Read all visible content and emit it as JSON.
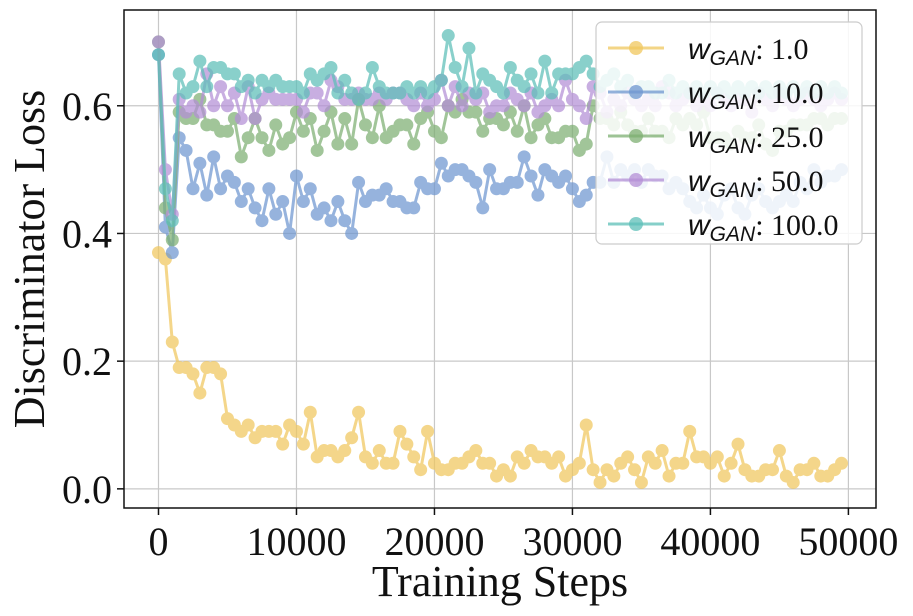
{
  "chart_data": {
    "type": "line",
    "xlabel": "Training Steps",
    "ylabel": "Discriminator Loss",
    "xlim": [
      -2500,
      52000
    ],
    "ylim": [
      -0.03,
      0.75
    ],
    "xticks": [
      0,
      10000,
      20000,
      30000,
      40000,
      50000
    ],
    "xtick_labels": [
      "0",
      "10000",
      "20000",
      "30000",
      "40000",
      "50000"
    ],
    "yticks": [
      0.0,
      0.2,
      0.4,
      0.6
    ],
    "ytick_labels": [
      "0.0",
      "0.2",
      "0.4",
      "0.6"
    ],
    "grid": true,
    "legend_position": "top-right",
    "x": [
      0,
      500,
      1000,
      1500,
      2000,
      2500,
      3000,
      3500,
      4000,
      4500,
      5000,
      5500,
      6000,
      6500,
      7000,
      7500,
      8000,
      8500,
      9000,
      9500,
      10000,
      10500,
      11000,
      11500,
      12000,
      12500,
      13000,
      13500,
      14000,
      14500,
      15000,
      15500,
      16000,
      16500,
      17000,
      17500,
      18000,
      18500,
      19000,
      19500,
      20000,
      20500,
      21000,
      21500,
      22000,
      22500,
      23000,
      23500,
      24000,
      24500,
      25000,
      25500,
      26000,
      26500,
      27000,
      27500,
      28000,
      28500,
      29000,
      29500,
      30000,
      30500,
      31000,
      31500,
      32000,
      32500,
      33000,
      33500,
      34000,
      34500,
      35000,
      35500,
      36000,
      36500,
      37000,
      37500,
      38000,
      38500,
      39000,
      39500,
      40000,
      40500,
      41000,
      41500,
      42000,
      42500,
      43000,
      43500,
      44000,
      44500,
      45000,
      45500,
      46000,
      46500,
      47000,
      47500,
      48000,
      48500,
      49000,
      49500
    ],
    "series": [
      {
        "name": "1.0",
        "color": "#f0c75e",
        "values": [
          0.37,
          0.36,
          0.23,
          0.19,
          0.19,
          0.18,
          0.15,
          0.19,
          0.19,
          0.18,
          0.11,
          0.1,
          0.09,
          0.1,
          0.08,
          0.09,
          0.09,
          0.09,
          0.07,
          0.1,
          0.09,
          0.07,
          0.12,
          0.05,
          0.06,
          0.06,
          0.05,
          0.06,
          0.08,
          0.12,
          0.05,
          0.04,
          0.06,
          0.04,
          0.04,
          0.09,
          0.07,
          0.05,
          0.03,
          0.09,
          0.04,
          0.03,
          0.03,
          0.04,
          0.04,
          0.05,
          0.06,
          0.04,
          0.04,
          0.02,
          0.03,
          0.02,
          0.05,
          0.04,
          0.06,
          0.05,
          0.05,
          0.04,
          0.05,
          0.02,
          0.03,
          0.04,
          0.1,
          0.03,
          0.01,
          0.03,
          0.02,
          0.04,
          0.05,
          0.03,
          0.01,
          0.05,
          0.04,
          0.06,
          0.02,
          0.04,
          0.04,
          0.09,
          0.05,
          0.05,
          0.04,
          0.05,
          0.02,
          0.04,
          0.07,
          0.03,
          0.02,
          0.02,
          0.03,
          0.03,
          0.06,
          0.02,
          0.01,
          0.03,
          0.03,
          0.04,
          0.02,
          0.02,
          0.03,
          0.04
        ]
      },
      {
        "name": "10.0",
        "color": "#6f97d0",
        "values": [
          0.68,
          0.41,
          0.37,
          0.55,
          0.53,
          0.47,
          0.51,
          0.46,
          0.52,
          0.47,
          0.49,
          0.48,
          0.45,
          0.47,
          0.44,
          0.42,
          0.47,
          0.43,
          0.45,
          0.4,
          0.49,
          0.45,
          0.47,
          0.43,
          0.44,
          0.42,
          0.45,
          0.42,
          0.4,
          0.48,
          0.45,
          0.46,
          0.46,
          0.47,
          0.45,
          0.45,
          0.44,
          0.44,
          0.48,
          0.47,
          0.47,
          0.51,
          0.49,
          0.5,
          0.5,
          0.49,
          0.48,
          0.44,
          0.5,
          0.47,
          0.47,
          0.48,
          0.48,
          0.52,
          0.49,
          0.46,
          0.5,
          0.49,
          0.48,
          0.49,
          0.47,
          0.45,
          0.46,
          0.48,
          0.48,
          0.52,
          0.48,
          0.5,
          0.49,
          0.5,
          0.48,
          0.5,
          0.49,
          0.49,
          0.47,
          0.48,
          0.47,
          0.45,
          0.44,
          0.46,
          0.44,
          0.43,
          0.46,
          0.47,
          0.44,
          0.43,
          0.46,
          0.47,
          0.45,
          0.44,
          0.45,
          0.46,
          0.45,
          0.48,
          0.47,
          0.5,
          0.48,
          0.49,
          0.49,
          0.5
        ]
      },
      {
        "name": "25.0",
        "color": "#7daf72",
        "values": [
          0.7,
          0.44,
          0.39,
          0.59,
          0.58,
          0.58,
          0.61,
          0.57,
          0.57,
          0.56,
          0.56,
          0.58,
          0.52,
          0.55,
          0.58,
          0.55,
          0.53,
          0.57,
          0.54,
          0.55,
          0.59,
          0.56,
          0.58,
          0.53,
          0.56,
          0.59,
          0.54,
          0.58,
          0.54,
          0.61,
          0.57,
          0.55,
          0.6,
          0.55,
          0.56,
          0.57,
          0.57,
          0.54,
          0.58,
          0.59,
          0.56,
          0.55,
          0.6,
          0.59,
          0.61,
          0.59,
          0.59,
          0.56,
          0.58,
          0.58,
          0.57,
          0.59,
          0.56,
          0.6,
          0.55,
          0.57,
          0.58,
          0.55,
          0.55,
          0.56,
          0.56,
          0.53,
          0.54,
          0.6,
          0.58,
          0.58,
          0.57,
          0.59,
          0.57,
          0.56,
          0.56,
          0.58,
          0.56,
          0.56,
          0.55,
          0.58,
          0.57,
          0.58,
          0.57,
          0.59,
          0.55,
          0.55,
          0.55,
          0.54,
          0.56,
          0.55,
          0.55,
          0.57,
          0.54,
          0.53,
          0.56,
          0.56,
          0.57,
          0.57,
          0.57,
          0.58,
          0.58,
          0.57,
          0.58,
          0.58
        ]
      },
      {
        "name": "50.0",
        "color": "#b48fd6",
        "values": [
          0.7,
          0.5,
          0.43,
          0.61,
          0.59,
          0.6,
          0.59,
          0.65,
          0.6,
          0.63,
          0.6,
          0.62,
          0.58,
          0.63,
          0.58,
          0.61,
          0.62,
          0.61,
          0.61,
          0.61,
          0.61,
          0.59,
          0.62,
          0.62,
          0.6,
          0.64,
          0.63,
          0.61,
          0.61,
          0.62,
          0.61,
          0.61,
          0.62,
          0.61,
          0.62,
          0.62,
          0.61,
          0.6,
          0.62,
          0.6,
          0.61,
          0.64,
          0.6,
          0.63,
          0.6,
          0.62,
          0.61,
          0.62,
          0.59,
          0.6,
          0.6,
          0.62,
          0.61,
          0.6,
          0.62,
          0.59,
          0.6,
          0.61,
          0.6,
          0.64,
          0.61,
          0.6,
          0.58,
          0.63,
          0.62,
          0.59,
          0.61,
          0.6,
          0.62,
          0.61,
          0.6,
          0.61,
          0.6,
          0.63,
          0.62,
          0.6,
          0.61,
          0.62,
          0.6,
          0.61,
          0.6,
          0.62,
          0.61,
          0.6,
          0.61,
          0.61,
          0.59,
          0.62,
          0.61,
          0.6,
          0.62,
          0.61,
          0.6,
          0.61,
          0.62,
          0.61,
          0.6,
          0.61,
          0.62,
          0.61
        ]
      },
      {
        "name": "100.0",
        "color": "#5dbfb8",
        "values": [
          0.68,
          0.47,
          0.42,
          0.65,
          0.62,
          0.63,
          0.67,
          0.63,
          0.66,
          0.66,
          0.65,
          0.65,
          0.63,
          0.64,
          0.62,
          0.64,
          0.63,
          0.64,
          0.63,
          0.63,
          0.63,
          0.62,
          0.65,
          0.64,
          0.65,
          0.66,
          0.62,
          0.64,
          0.62,
          0.61,
          0.62,
          0.66,
          0.63,
          0.62,
          0.62,
          0.62,
          0.63,
          0.62,
          0.63,
          0.62,
          0.63,
          0.64,
          0.71,
          0.66,
          0.63,
          0.69,
          0.62,
          0.65,
          0.64,
          0.63,
          0.62,
          0.66,
          0.64,
          0.63,
          0.65,
          0.62,
          0.67,
          0.62,
          0.65,
          0.65,
          0.65,
          0.66,
          0.67,
          0.65,
          0.63,
          0.64,
          0.65,
          0.63,
          0.64,
          0.62,
          0.63,
          0.63,
          0.62,
          0.62,
          0.64,
          0.62,
          0.63,
          0.62,
          0.63,
          0.62,
          0.63,
          0.62,
          0.63,
          0.62,
          0.63,
          0.62,
          0.63,
          0.62,
          0.63,
          0.62,
          0.63,
          0.62,
          0.63,
          0.62,
          0.63,
          0.62,
          0.63,
          0.62,
          0.63,
          0.62
        ]
      }
    ],
    "legend": {
      "label_w": "w",
      "label_sub": "GAN",
      "separator": ":"
    }
  }
}
